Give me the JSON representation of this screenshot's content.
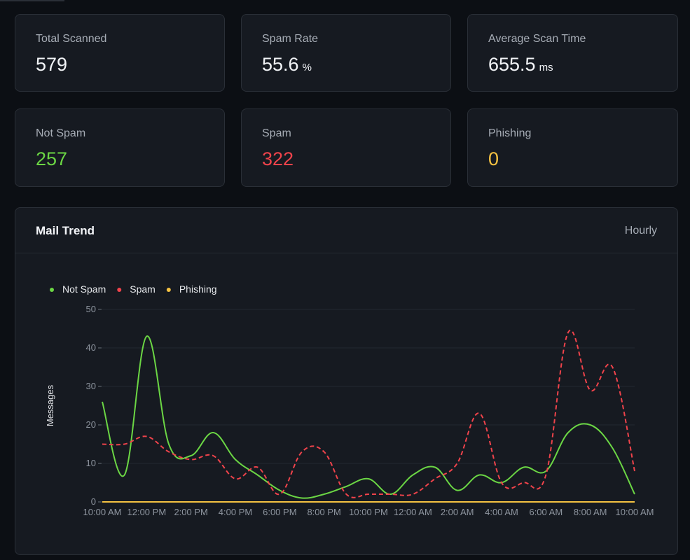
{
  "stats": [
    {
      "label": "Total Scanned",
      "value": "579",
      "unit": "",
      "color": "#f2f4f7"
    },
    {
      "label": "Spam Rate",
      "value": "55.6",
      "unit": "%",
      "color": "#f2f4f7"
    },
    {
      "label": "Average Scan Time",
      "value": "655.5",
      "unit": "ms",
      "color": "#f2f4f7"
    },
    {
      "label": "Not Spam",
      "value": "257",
      "unit": "",
      "color": "#6bd644"
    },
    {
      "label": "Spam",
      "value": "322",
      "unit": "",
      "color": "#f0434b"
    },
    {
      "label": "Phishing",
      "value": "0",
      "unit": "",
      "color": "#f5c242"
    }
  ],
  "chart_card": {
    "title": "Mail Trend",
    "period": "Hourly"
  },
  "chart_data": {
    "type": "line",
    "ylabel": "Messages",
    "ylim": [
      0,
      50
    ],
    "yticks": [
      0,
      10,
      20,
      30,
      40,
      50
    ],
    "grid": true,
    "legend_position": "top-left",
    "x_tick_labels": [
      "10:00 AM",
      "12:00 PM",
      "2:00 PM",
      "4:00 PM",
      "6:00 PM",
      "8:00 PM",
      "10:00 PM",
      "12:00 AM",
      "2:00 AM",
      "4:00 AM",
      "6:00 AM",
      "8:00 AM",
      "10:00 AM"
    ],
    "series": [
      {
        "name": "Not Spam",
        "color": "#6bd644",
        "dashed": false,
        "values": [
          26,
          7,
          43,
          15,
          12,
          18,
          11,
          7,
          3,
          1,
          2,
          4,
          6,
          2,
          7,
          9,
          3,
          7,
          5,
          9,
          8,
          18,
          20,
          14,
          2
        ]
      },
      {
        "name": "Spam",
        "color": "#f0434b",
        "dashed": true,
        "values": [
          15,
          15,
          17,
          13,
          11,
          12,
          6,
          9,
          2,
          13,
          13,
          2,
          2,
          2,
          2,
          6,
          10,
          23,
          5,
          5,
          7,
          44,
          29,
          35,
          8
        ]
      },
      {
        "name": "Phishing",
        "color": "#f5c242",
        "dashed": false,
        "values": [
          0,
          0,
          0,
          0,
          0,
          0,
          0,
          0,
          0,
          0,
          0,
          0,
          0,
          0,
          0,
          0,
          0,
          0,
          0,
          0,
          0,
          0,
          0,
          0,
          0
        ]
      }
    ]
  }
}
